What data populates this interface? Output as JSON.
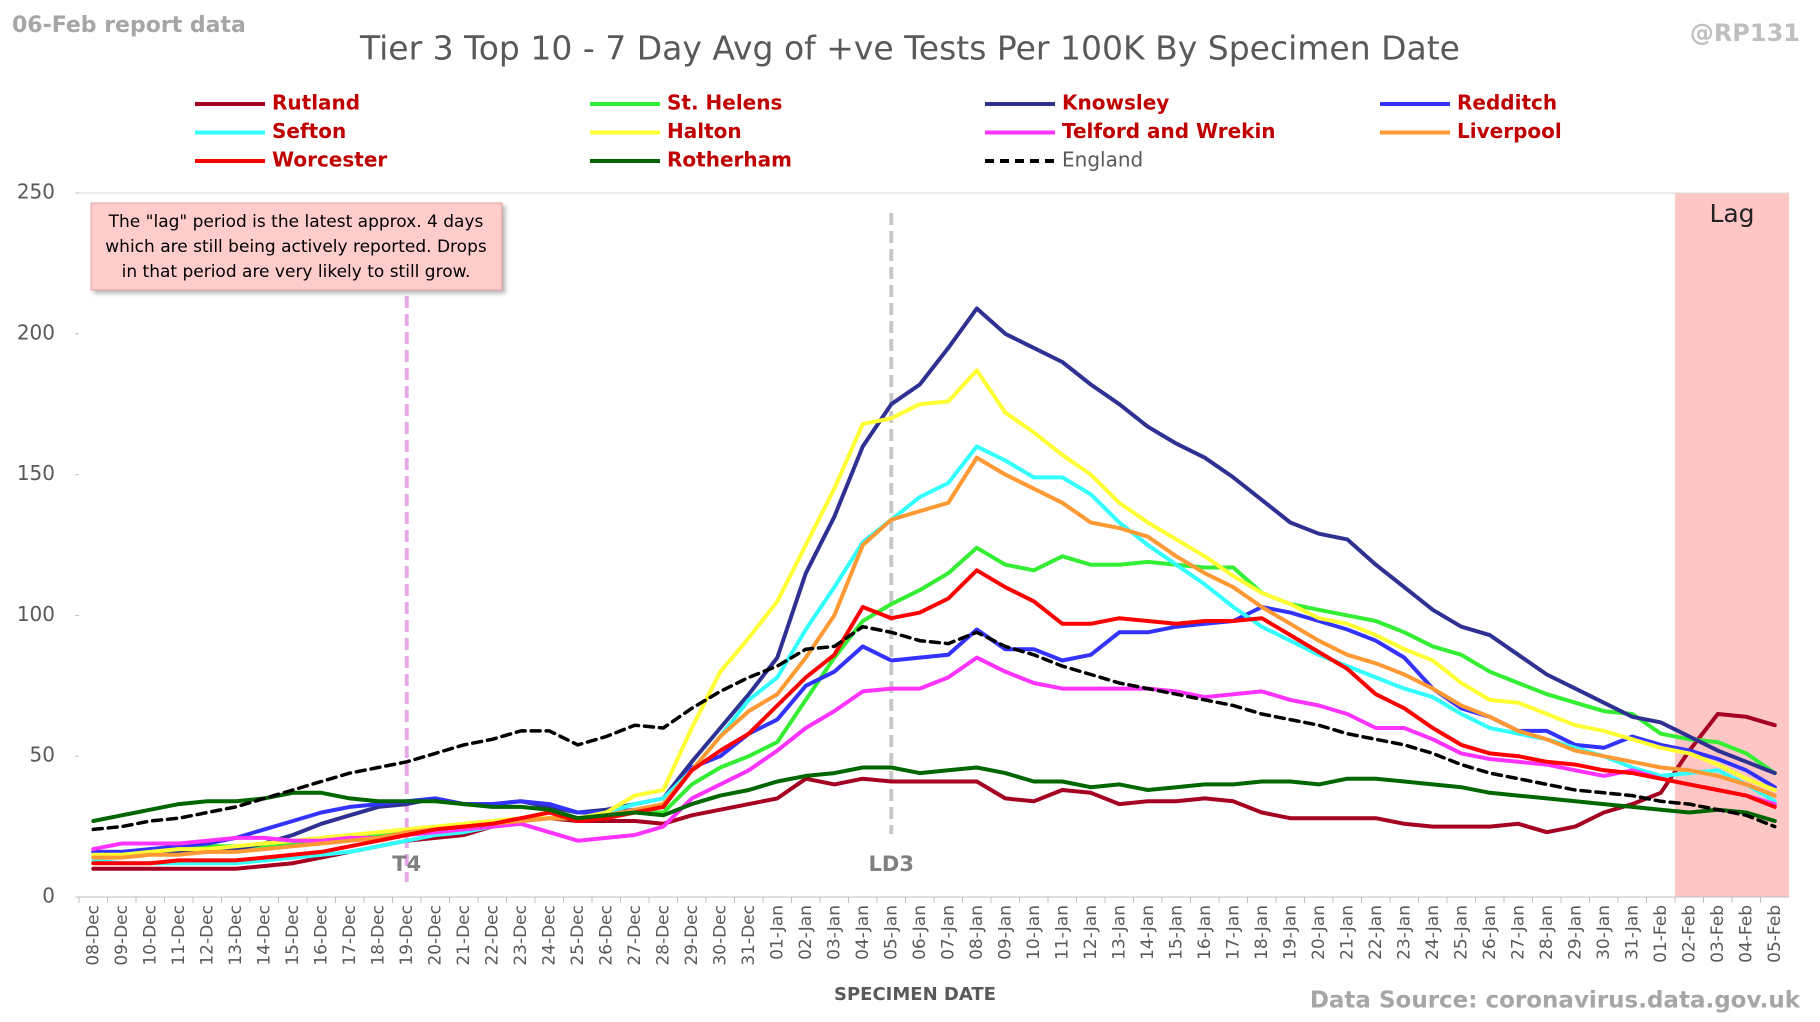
{
  "chart_data": {
    "type": "line",
    "title": "Tier 3 Top 10 - 7 Day Avg of +ve Tests Per 100K By Specimen Date",
    "report_label": "06-Feb report data",
    "handle": "@RP131",
    "x_label": "SPECIMEN DATE",
    "source": "Data Source: coronavirus.data.gov.uk",
    "note": [
      "The \"lag\" period is the latest approx. 4 days",
      "which are still being actively reported.  Drops",
      "in that period are very likely to still grow."
    ],
    "annotations": [
      {
        "text": "T4",
        "x": "19-Dec",
        "color": "#e8a8e8"
      },
      {
        "text": "LD3",
        "x": "05-Jan",
        "color": "#c8c8c8"
      }
    ],
    "lag": {
      "text": "Lag",
      "x": "02-Feb",
      "color": "#ffb3b3"
    },
    "categories": [
      "08-Dec",
      "09-Dec",
      "10-Dec",
      "11-Dec",
      "12-Dec",
      "13-Dec",
      "14-Dec",
      "15-Dec",
      "16-Dec",
      "17-Dec",
      "18-Dec",
      "19-Dec",
      "20-Dec",
      "21-Dec",
      "22-Dec",
      "23-Dec",
      "24-Dec",
      "25-Dec",
      "26-Dec",
      "27-Dec",
      "28-Dec",
      "29-Dec",
      "30-Dec",
      "31-Dec",
      "01-Jan",
      "02-Jan",
      "03-Jan",
      "04-Jan",
      "05-Jan",
      "06-Jan",
      "07-Jan",
      "08-Jan",
      "09-Jan",
      "10-Jan",
      "11-Jan",
      "12-Jan",
      "13-Jan",
      "14-Jan",
      "15-Jan",
      "16-Jan",
      "17-Jan",
      "18-Jan",
      "19-Jan",
      "20-Jan",
      "21-Jan",
      "22-Jan",
      "23-Jan",
      "24-Jan",
      "25-Jan",
      "26-Jan",
      "27-Jan",
      "28-Jan",
      "29-Jan",
      "30-Jan",
      "31-Jan",
      "01-Feb",
      "02-Feb",
      "03-Feb",
      "04-Feb",
      "05-Feb"
    ],
    "ylim": [
      0,
      250
    ],
    "yticks": [
      0,
      50,
      100,
      150,
      200,
      250
    ],
    "grid": false,
    "series": [
      {
        "name": "Rutland",
        "color": "#a50021",
        "values": [
          10,
          10,
          10,
          10,
          10,
          10,
          11,
          12,
          14,
          16,
          18,
          20,
          21,
          22,
          25,
          27,
          28,
          27,
          27,
          27,
          26,
          29,
          31,
          33,
          35,
          42,
          40,
          42,
          41,
          41,
          41,
          41,
          35,
          34,
          38,
          37,
          33,
          34,
          34,
          35,
          34,
          30,
          28,
          28,
          28,
          28,
          26,
          25,
          25,
          25,
          26,
          23,
          25,
          30,
          33,
          37,
          52,
          65,
          64,
          61
        ]
      },
      {
        "name": "St. Helens",
        "color": "#33ee33",
        "values": [
          16,
          16,
          17,
          17,
          18,
          18,
          18,
          19,
          20,
          21,
          22,
          23,
          24,
          25,
          26,
          27,
          28,
          28,
          29,
          30,
          30,
          40,
          46,
          50,
          55,
          70,
          85,
          98,
          104,
          109,
          115,
          124,
          118,
          116,
          121,
          118,
          118,
          119,
          118,
          117,
          117,
          108,
          104,
          102,
          100,
          98,
          94,
          89,
          86,
          80,
          76,
          72,
          69,
          66,
          65,
          58,
          56,
          55,
          51,
          44
        ]
      },
      {
        "name": "Knowsley",
        "color": "#2e3192",
        "values": [
          15,
          15,
          16,
          16,
          16,
          17,
          19,
          22,
          26,
          29,
          32,
          33,
          35,
          33,
          33,
          34,
          32,
          30,
          31,
          33,
          35,
          48,
          60,
          72,
          85,
          115,
          135,
          160,
          175,
          182,
          195,
          209,
          200,
          195,
          190,
          182,
          175,
          167,
          161,
          156,
          149,
          141,
          133,
          129,
          127,
          118,
          110,
          102,
          96,
          93,
          86,
          79,
          74,
          69,
          64,
          62,
          57,
          52,
          48,
          44
        ]
      },
      {
        "name": "Redditch",
        "color": "#3333ff",
        "values": [
          16,
          16,
          17,
          18,
          19,
          21,
          24,
          27,
          30,
          32,
          33,
          34,
          35,
          33,
          33,
          34,
          33,
          30,
          30,
          31,
          32,
          46,
          50,
          58,
          63,
          75,
          80,
          89,
          84,
          85,
          86,
          95,
          88,
          88,
          84,
          86,
          94,
          94,
          96,
          97,
          98,
          103,
          101,
          98,
          95,
          91,
          85,
          74,
          67,
          64,
          59,
          59,
          54,
          53,
          57,
          54,
          52,
          49,
          45,
          39
        ]
      },
      {
        "name": "Sefton",
        "color": "#33ffff",
        "values": [
          13,
          12,
          12,
          12,
          12,
          12,
          13,
          14,
          15,
          16,
          18,
          20,
          22,
          23,
          25,
          27,
          28,
          28,
          30,
          33,
          35,
          45,
          57,
          70,
          78,
          95,
          110,
          126,
          134,
          142,
          147,
          160,
          155,
          149,
          149,
          143,
          133,
          125,
          118,
          111,
          103,
          96,
          91,
          86,
          82,
          78,
          74,
          71,
          65,
          60,
          58,
          56,
          53,
          50,
          46,
          43,
          44,
          45,
          40,
          34
        ]
      },
      {
        "name": "Halton",
        "color": "#ffff33",
        "values": [
          15,
          15,
          16,
          17,
          17,
          18,
          19,
          20,
          21,
          22,
          23,
          24,
          25,
          26,
          27,
          28,
          28,
          28,
          30,
          36,
          38,
          60,
          80,
          92,
          105,
          125,
          145,
          168,
          170,
          175,
          176,
          187,
          172,
          165,
          157,
          150,
          140,
          133,
          127,
          121,
          114,
          108,
          104,
          99,
          97,
          93,
          88,
          84,
          76,
          70,
          69,
          65,
          61,
          59,
          56,
          53,
          51,
          47,
          42,
          38
        ]
      },
      {
        "name": "Telford and Wrekin",
        "color": "#ff33ff",
        "values": [
          17,
          19,
          19,
          19,
          20,
          21,
          21,
          20,
          20,
          21,
          21,
          22,
          23,
          24,
          25,
          26,
          23,
          20,
          21,
          22,
          25,
          35,
          40,
          45,
          52,
          60,
          66,
          73,
          74,
          74,
          78,
          85,
          80,
          76,
          74,
          74,
          74,
          74,
          73,
          71,
          72,
          73,
          70,
          68,
          65,
          60,
          60,
          56,
          51,
          49,
          48,
          47,
          45,
          43,
          45,
          42,
          40,
          38,
          36,
          33
        ]
      },
      {
        "name": "Liverpool",
        "color": "#ff9933",
        "values": [
          14,
          14,
          15,
          15,
          16,
          16,
          17,
          18,
          19,
          20,
          21,
          23,
          24,
          25,
          26,
          27,
          28,
          28,
          29,
          31,
          33,
          45,
          57,
          66,
          72,
          85,
          100,
          125,
          134,
          137,
          140,
          156,
          150,
          145,
          140,
          133,
          131,
          128,
          121,
          115,
          110,
          103,
          97,
          91,
          86,
          83,
          79,
          74,
          68,
          64,
          59,
          56,
          52,
          50,
          48,
          46,
          45,
          43,
          40,
          36
        ]
      },
      {
        "name": "Worcester",
        "color": "#ff0000",
        "values": [
          12,
          12,
          12,
          13,
          13,
          13,
          14,
          15,
          16,
          18,
          20,
          22,
          24,
          25,
          26,
          28,
          30,
          27,
          28,
          30,
          32,
          45,
          52,
          58,
          68,
          78,
          86,
          103,
          99,
          101,
          106,
          116,
          110,
          105,
          97,
          97,
          99,
          98,
          97,
          98,
          98,
          99,
          93,
          87,
          81,
          72,
          67,
          60,
          54,
          51,
          50,
          48,
          47,
          45,
          44,
          42,
          40,
          38,
          36,
          32
        ]
      },
      {
        "name": "Rotherham",
        "color": "#006600",
        "values": [
          27,
          29,
          31,
          33,
          34,
          34,
          35,
          37,
          37,
          35,
          34,
          34,
          34,
          33,
          32,
          32,
          31,
          28,
          29,
          30,
          29,
          33,
          36,
          38,
          41,
          43,
          44,
          46,
          46,
          44,
          45,
          46,
          44,
          41,
          41,
          39,
          40,
          38,
          39,
          40,
          40,
          41,
          41,
          40,
          42,
          42,
          41,
          40,
          39,
          37,
          36,
          35,
          34,
          33,
          32,
          31,
          30,
          31,
          30,
          27
        ]
      },
      {
        "name": "England",
        "color": "#000000",
        "dashed": true,
        "values": [
          24,
          25,
          27,
          28,
          30,
          32,
          35,
          38,
          41,
          44,
          46,
          48,
          51,
          54,
          56,
          59,
          59,
          54,
          57,
          61,
          60,
          67,
          73,
          78,
          82,
          88,
          89,
          96,
          94,
          91,
          90,
          94,
          89,
          86,
          82,
          79,
          76,
          74,
          72,
          70,
          68,
          65,
          63,
          61,
          58,
          56,
          54,
          51,
          47,
          44,
          42,
          40,
          38,
          37,
          36,
          34,
          33,
          31,
          29,
          25
        ]
      }
    ]
  }
}
